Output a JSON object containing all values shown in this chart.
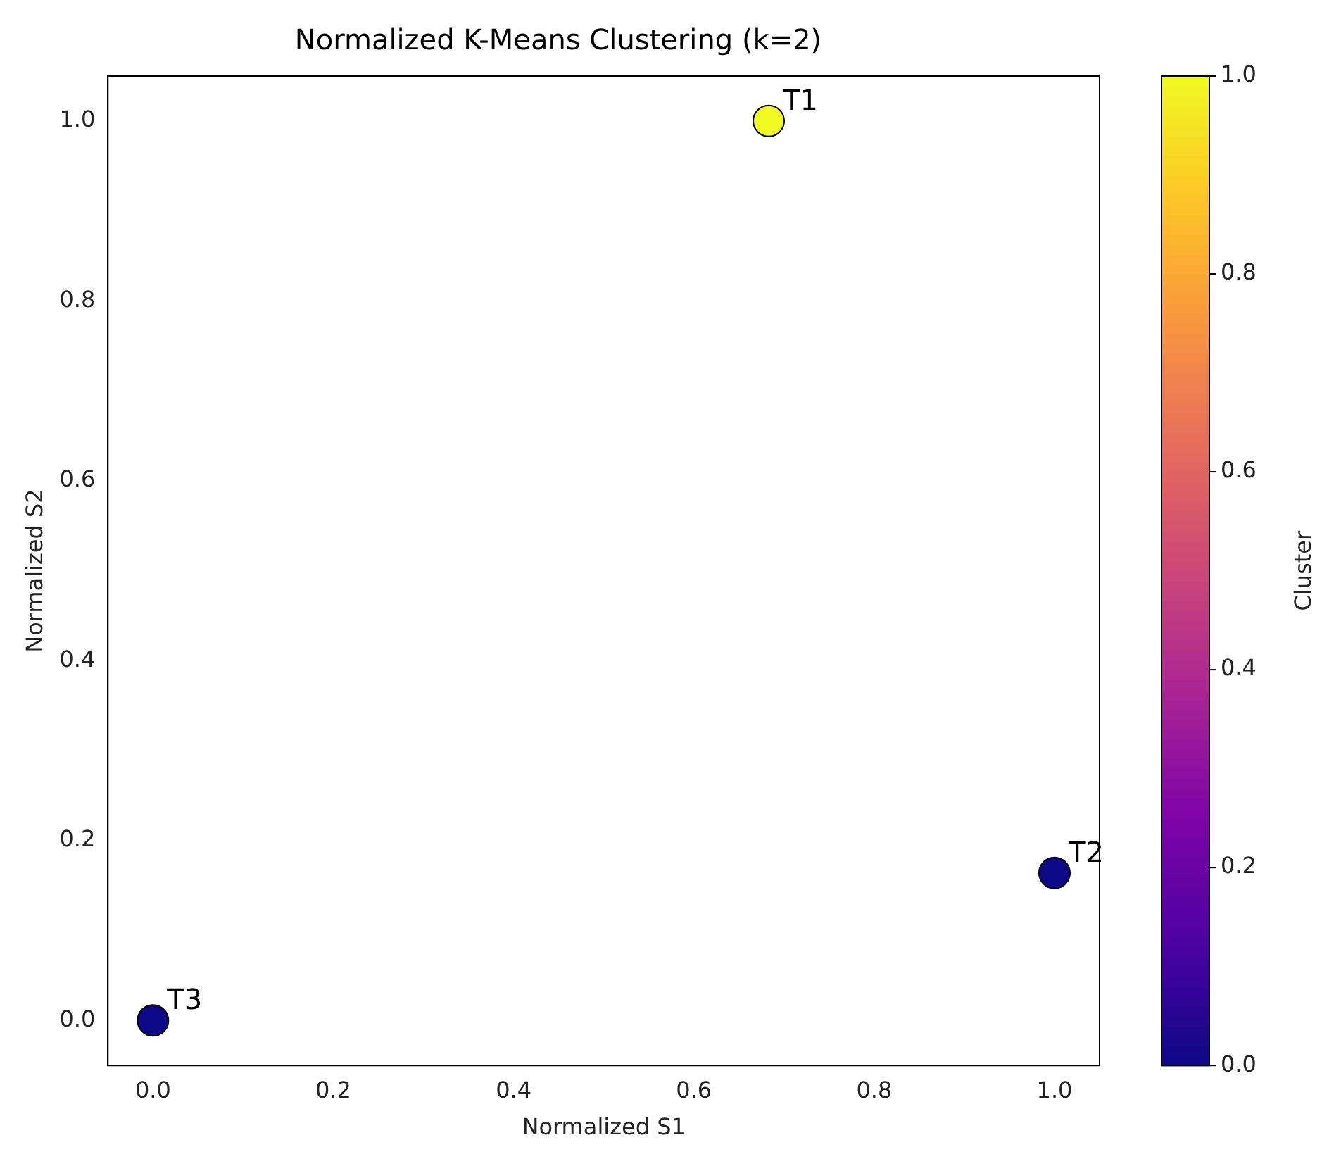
{
  "chart_data": {
    "type": "scatter",
    "title": "Normalized K-Means Clustering (k=2)",
    "xlabel": "Normalized S1",
    "ylabel": "Normalized S2",
    "clabel": "Cluster",
    "x": [
      0.683,
      1.0,
      0.0
    ],
    "values": [
      1.0,
      0.164,
      0.0
    ],
    "cvalues": [
      1,
      0,
      0
    ],
    "clim": [
      0,
      1
    ],
    "cticks": [
      {
        "value": 0,
        "label": "0.0"
      },
      0.2,
      0.4,
      0.6,
      0.8,
      {
        "value": 1,
        "label": "1.0"
      }
    ],
    "xlim": [
      -0.05,
      1.05
    ],
    "xticks": [
      {
        "value": 0,
        "label": "0.0"
      },
      0.2,
      0.4,
      0.6,
      0.8,
      {
        "value": 1,
        "label": "1.0"
      }
    ],
    "ylim": [
      -0.05,
      1.05
    ],
    "yticks": [
      {
        "value": 0,
        "label": "0.0"
      },
      0.2,
      0.4,
      0.6,
      0.8,
      {
        "value": 1,
        "label": "1.0"
      }
    ],
    "annotations": [
      {
        "text": "T1",
        "x": 0.683,
        "y": 1.0
      },
      {
        "text": "T2",
        "x": 1.0,
        "y": 0.164
      },
      {
        "text": "T3",
        "x": 0.0,
        "y": 0.0
      }
    ],
    "marker": "circle",
    "grid": false,
    "legend": false
  }
}
